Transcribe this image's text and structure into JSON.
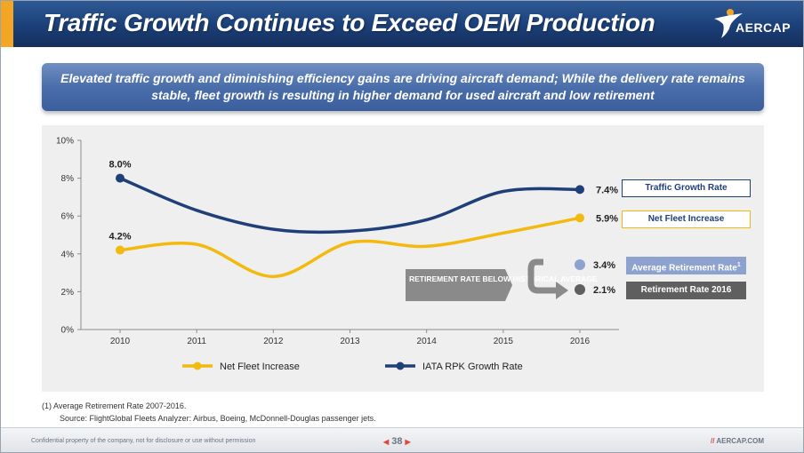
{
  "slide": {
    "title": "Traffic Growth Continues to Exceed OEM Production",
    "subtitle": "Elevated traffic growth and diminishing efficiency gains are driving aircraft demand; While the delivery rate remains stable, fleet growth is resulting in higher demand for used aircraft and low retirement",
    "logo_text": "AERCAP",
    "footnote": "(1)    Average Retirement Rate 2007-2016.",
    "source": "Source: FlightGlobal Fleets Analyzer: Airbus, Boeing, McDonnell-Douglas passenger jets.",
    "footer_left": "Confidential property of the company, not for disclosure or use without permission",
    "page_number": "38",
    "footer_right": "AERCAP.COM",
    "footer_right_prefix": "//"
  },
  "callouts": {
    "retirement_note": "RETIREMENT RATE BELOW HISTORICAL AVERAGE",
    "traffic_box": "Traffic Growth Rate",
    "fleet_box": "Net Fleet Increase",
    "avg_box": "Average Retirement Rate",
    "avg_box_sup": "1",
    "ret_box": "Retirement Rate 2016",
    "avg_value": "3.4%",
    "ret_value": "2.1%"
  },
  "chart_data": {
    "type": "line",
    "categories": [
      "2010",
      "2011",
      "2012",
      "2013",
      "2014",
      "2015",
      "2016"
    ],
    "ylim": [
      0,
      10
    ],
    "yticks": [
      "0%",
      "2%",
      "4%",
      "6%",
      "8%",
      "10%"
    ],
    "legend_position": "bottom",
    "series": [
      {
        "name": "Net Fleet Increase",
        "values": [
          4.2,
          4.5,
          2.8,
          4.6,
          4.4,
          5.1,
          5.9
        ],
        "color": "#f2b90f",
        "labels": {
          "first": "4.2%",
          "last": "5.9%"
        }
      },
      {
        "name": "IATA RPK Growth Rate",
        "values": [
          8.0,
          6.3,
          5.3,
          5.2,
          5.8,
          7.3,
          7.4
        ],
        "color": "#1f3f78",
        "labels": {
          "first": "8.0%",
          "last": "7.4%"
        }
      }
    ],
    "markers": [
      {
        "name": "Average Retirement Rate",
        "value": 3.4,
        "color": "#8ea2cf"
      },
      {
        "name": "Retirement Rate 2016",
        "value": 2.1,
        "color": "#5f5f5f"
      }
    ]
  }
}
